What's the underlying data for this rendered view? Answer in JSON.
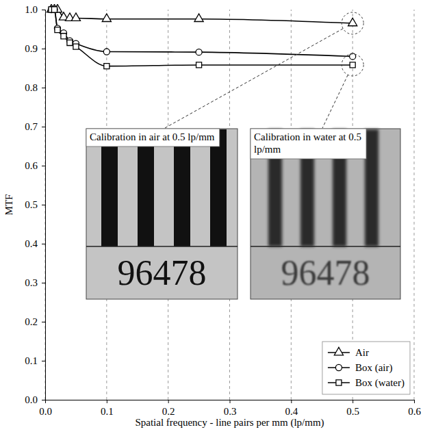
{
  "chart_data": {
    "type": "line",
    "x_label": "Spatial frequency - line pairs per mm (lp/mm)",
    "y_label": "MTF",
    "x": [
      0.01,
      0.015,
      0.02,
      0.03,
      0.04,
      0.05,
      0.1,
      0.25,
      0.5
    ],
    "series": [
      {
        "name": "Air",
        "color": "#000000",
        "marker": "triangle",
        "line_style": "solid",
        "values": [
          1.0,
          1.0,
          1.0,
          0.98,
          0.978,
          0.978,
          0.976,
          0.976,
          0.965
        ]
      },
      {
        "name": "Box (air)",
        "color": "#000000",
        "marker": "circle",
        "line_style": "solid",
        "values": [
          1.0,
          1.0,
          0.952,
          0.94,
          0.92,
          0.913,
          0.892,
          0.891,
          0.88
        ]
      },
      {
        "name": "Box (water)",
        "color": "#000000",
        "marker": "square",
        "line_style": "solid",
        "values": [
          1.0,
          1.0,
          0.948,
          0.932,
          0.915,
          0.905,
          0.855,
          0.858,
          0.858
        ]
      }
    ],
    "xlim": [
      0,
      0.6
    ],
    "ylim": [
      0,
      1
    ],
    "xticks": [
      {
        "value": 0,
        "label": "0.0"
      },
      0.1,
      0.2,
      0.3,
      0.4,
      0.5,
      0.6
    ],
    "yticks": [
      {
        "value": 0,
        "label": "0.0"
      },
      0.1,
      0.2,
      0.3,
      0.4,
      0.5,
      0.6,
      0.7,
      0.8,
      0.9,
      {
        "value": 1,
        "label": "1.0"
      }
    ],
    "grid": "x",
    "legend": "lower right",
    "annotations": [
      {
        "text": "Calibration in air at 0.5 lp/mm",
        "inset_text": "96478",
        "x": 0.5,
        "y": 0.965
      },
      {
        "text": "Calibration in water at 0.5 lp/mm",
        "inset_text": "96478",
        "x": 0.5,
        "y": 0.858
      }
    ]
  }
}
